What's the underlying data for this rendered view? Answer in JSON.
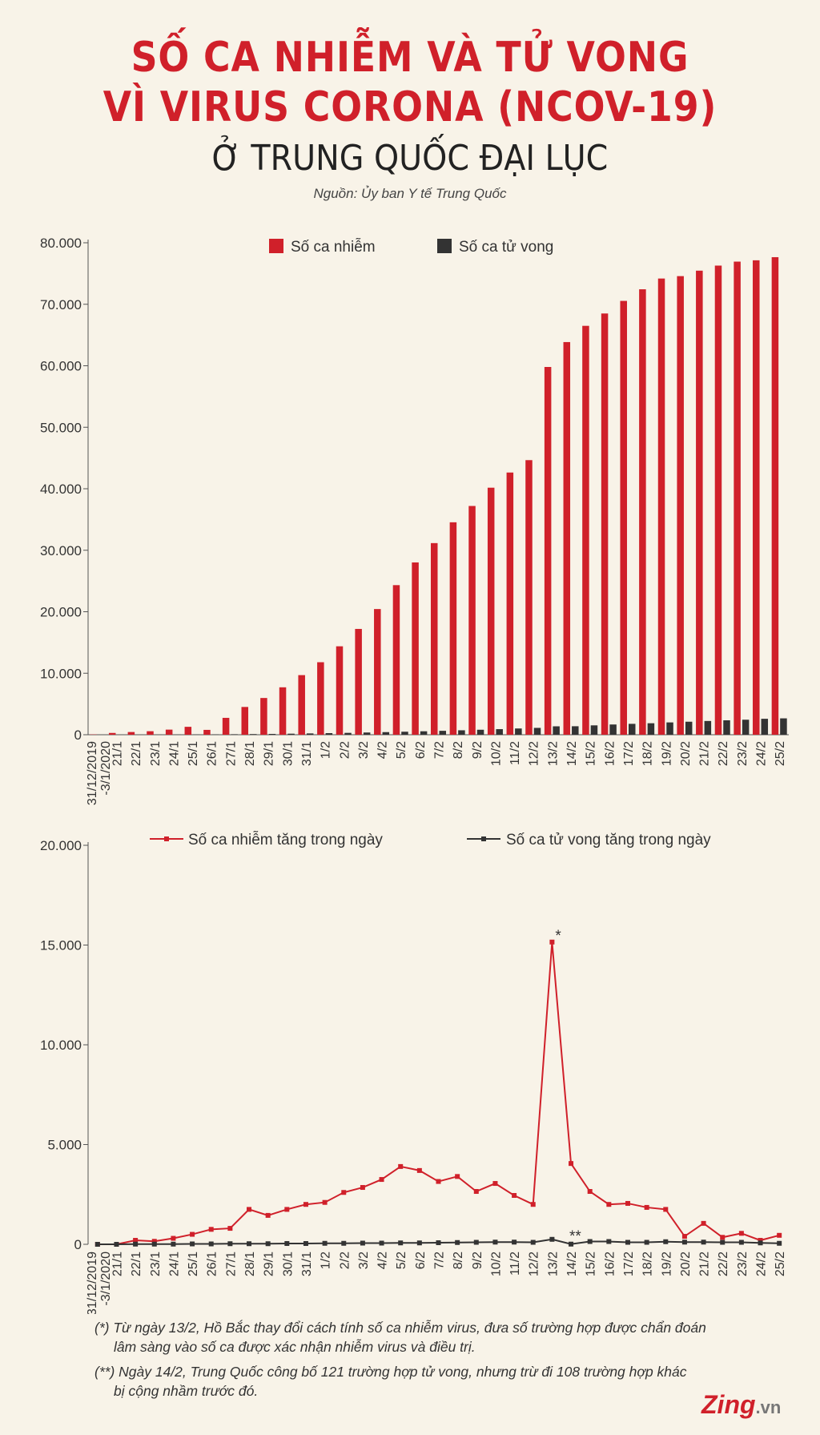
{
  "header": {
    "title_line1": "SỐ CA NHIỄM VÀ TỬ VONG",
    "title_line2": "VÌ VIRUS CORONA (NCOV-19)",
    "subtitle": "Ở TRUNG QUỐC ĐẠI LỤC",
    "source": "Nguồn: Ủy ban Y tế Trung Quốc"
  },
  "colors": {
    "red": "#d0202a",
    "dark": "#333333",
    "background": "#f8f3e8"
  },
  "chart_data": [
    {
      "type": "bar",
      "categories": [
        "31/12/2019 -3/1/2020",
        "21/1",
        "22/1",
        "23/1",
        "24/1",
        "25/1",
        "26/1",
        "27/1",
        "28/1",
        "29/1",
        "30/1",
        "31/1",
        "1/2",
        "2/2",
        "3/2",
        "4/2",
        "5/2",
        "6/2",
        "7/2",
        "8/2",
        "9/2",
        "10/2",
        "11/2",
        "12/2",
        "13/2",
        "14/2",
        "15/2",
        "16/2",
        "17/2",
        "18/2",
        "19/2",
        "20/2",
        "21/2",
        "22/2",
        "23/2",
        "24/2",
        "25/2"
      ],
      "series": [
        {
          "name": "Số ca nhiễm",
          "values": [
            44,
            291,
            440,
            571,
            830,
            1287,
            790,
            2744,
            4515,
            5974,
            7711,
            9692,
            11791,
            14380,
            17205,
            20438,
            24324,
            28018,
            31161,
            34546,
            37198,
            40171,
            42638,
            44653,
            59804,
            63851,
            66492,
            68500,
            70548,
            72436,
            74185,
            74576,
            75465,
            76288,
            76936,
            77150,
            77658
          ]
        },
        {
          "name": "Số ca tử vong",
          "values": [
            0,
            6,
            9,
            17,
            25,
            41,
            56,
            80,
            106,
            132,
            170,
            213,
            259,
            304,
            361,
            425,
            490,
            563,
            636,
            722,
            811,
            908,
            1016,
            1113,
            1367,
            1380,
            1523,
            1665,
            1770,
            1868,
            2004,
            2118,
            2236,
            2345,
            2442,
            2592,
            2663
          ]
        }
      ],
      "ylim": [
        0,
        80000
      ],
      "yticks": [
        "0",
        "10.000",
        "20.000",
        "30.000",
        "40.000",
        "50.000",
        "60.000",
        "70.000",
        "80.000"
      ],
      "legend": [
        "Số ca nhiễm",
        "Số ca tử vong"
      ]
    },
    {
      "type": "line",
      "categories": [
        "31/12/2019 -3/1/2020",
        "21/1",
        "22/1",
        "23/1",
        "24/1",
        "25/1",
        "26/1",
        "27/1",
        "28/1",
        "29/1",
        "30/1",
        "31/1",
        "1/2",
        "2/2",
        "3/2",
        "4/2",
        "5/2",
        "6/2",
        "7/2",
        "8/2",
        "9/2",
        "10/2",
        "11/2",
        "12/2",
        "13/2",
        "14/2",
        "15/2",
        "16/2",
        "17/2",
        "18/2",
        "19/2",
        "20/2",
        "21/2",
        "22/2",
        "23/2",
        "24/2",
        "25/2"
      ],
      "series": [
        {
          "name": "Số ca nhiễm tăng trong ngày",
          "values": [
            0,
            0,
            200,
            150,
            300,
            500,
            750,
            800,
            1750,
            1450,
            1750,
            2000,
            2100,
            2600,
            2850,
            3250,
            3900,
            3700,
            3150,
            3400,
            2650,
            3050,
            2450,
            2000,
            15150,
            4050,
            2650,
            2000,
            2050,
            1850,
            1750,
            400,
            1050,
            350,
            550,
            200,
            450
          ]
        },
        {
          "name": "Số ca tử vong tăng trong ngày",
          "values": [
            0,
            0,
            10,
            10,
            10,
            20,
            20,
            30,
            30,
            30,
            40,
            40,
            50,
            50,
            60,
            60,
            70,
            70,
            80,
            90,
            100,
            110,
            110,
            100,
            250,
            10,
            140,
            140,
            100,
            100,
            130,
            110,
            110,
            100,
            100,
            70,
            50
          ]
        }
      ],
      "ylim": [
        0,
        20000
      ],
      "yticks": [
        "0",
        "5.000",
        "10.000",
        "15.000",
        "20.000"
      ],
      "annotations": [
        "*",
        "**"
      ],
      "legend": [
        "Số ca nhiễm tăng trong ngày",
        "Số ca tử vong tăng trong ngày"
      ]
    }
  ],
  "notes": {
    "note1_line1": "(*) Từ ngày 13/2, Hồ Bắc thay đổi cách tính số ca nhiễm virus, đưa số trường hợp được chẩn đoán",
    "note1_line2": "lâm sàng vào số ca được xác nhận nhiễm virus và điều trị.",
    "note2_line1": "(**) Ngày 14/2, Trung Quốc công bố 121 trường hợp tử vong, nhưng trừ đi 108 trường hợp khác",
    "note2_line2": "bị cộng nhầm trước đó."
  },
  "logo": {
    "brand": "Zing",
    "suffix": ".vn"
  }
}
